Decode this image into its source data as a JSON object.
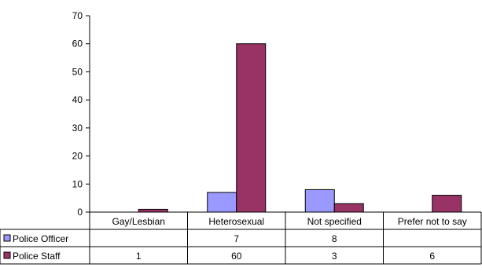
{
  "chart_data": {
    "type": "bar",
    "categories": [
      "Gay/Lesbian",
      "Heterosexual",
      "Not specified",
      "Prefer not to say"
    ],
    "series": [
      {
        "name": "Police Officer",
        "color": "#9999ff",
        "values": [
          null,
          7,
          8,
          null
        ],
        "labels": [
          "",
          "7",
          "8",
          ""
        ]
      },
      {
        "name": "Police Staff",
        "color": "#993366",
        "values": [
          1,
          60,
          3,
          6
        ],
        "labels": [
          "1",
          "60",
          "3",
          "6"
        ]
      }
    ],
    "ylim": [
      0,
      70
    ],
    "yticks": [
      0,
      10,
      20,
      30,
      40,
      50,
      60,
      70
    ],
    "grid": false,
    "legend": "data-table"
  }
}
